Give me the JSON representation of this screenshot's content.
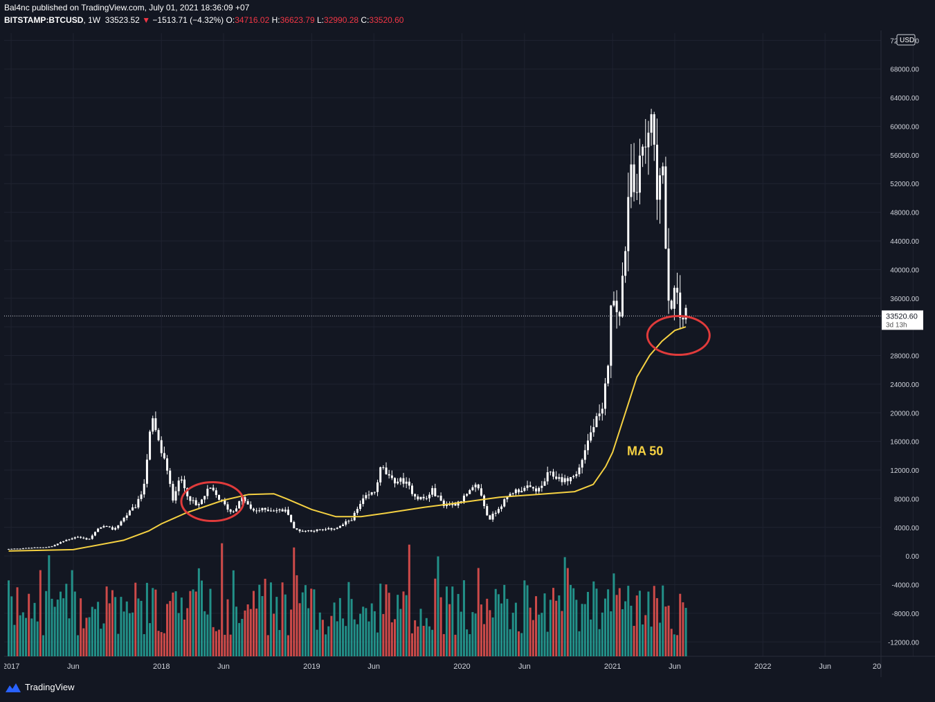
{
  "header": {
    "publisher": "Bal4nc published on TradingView.com, July 01, 2021 18:36:09 +07",
    "symbol": "BITSTAMP:BTCUSD",
    "interval": "1W",
    "last_price": "33523.52",
    "change_arrow": "▼",
    "change": "−1513.71 (−4.32%)",
    "open_label": "O:",
    "open": "34716.02",
    "high_label": "H:",
    "high": "36623.79",
    "low_label": "L:",
    "low": "32990.28",
    "close_label": "C:",
    "close": "33520.60"
  },
  "price_axis": {
    "currency": "USD",
    "ticks": [
      72000,
      68000,
      64000,
      60000,
      56000,
      52000,
      48000,
      44000,
      40000,
      36000,
      32000,
      28000,
      24000,
      20000,
      16000,
      12000,
      8000,
      4000,
      0,
      -4000,
      -8000,
      -12000
    ],
    "tick_labels": [
      "72000.00",
      "68000.00",
      "64000.00",
      "60000.00",
      "56000.00",
      "52000.00",
      "48000.00",
      "44000.00",
      "40000.00",
      "36000.00",
      "32000.00",
      "28000.00",
      "24000.00",
      "20000.00",
      "16000.00",
      "12000.00",
      "8000.00",
      "4000.00",
      "0.00",
      "-4000.00",
      "-8000.00",
      "-12000.00"
    ],
    "current_price_label": "33520.60",
    "countdown_label": "3d 13h"
  },
  "time_axis": {
    "labels": [
      "2017",
      "Jun",
      "2018",
      "Jun",
      "2019",
      "Jun",
      "2020",
      "Jun",
      "2021",
      "Jun",
      "2022",
      "Jun",
      "20"
    ]
  },
  "annotation": {
    "text": "MA 50"
  },
  "colors": {
    "background": "#131722",
    "candle": "#ffffff",
    "ma": "#f5d142",
    "circle": "#e03b3b",
    "vol_up": "#26a69a",
    "vol_down": "#ef5350"
  },
  "footer": {
    "brand": "TradingView"
  },
  "chart_data": {
    "type": "candlestick",
    "interval": "1W",
    "symbol": "BITSTAMP:BTCUSD",
    "ylim": [
      -14000,
      73000
    ],
    "x_range": [
      "2016-12-15",
      "2022-10-15"
    ],
    "current_price": 33520.6,
    "price_path": [
      [
        "2016-12-26",
        950
      ],
      [
        "2017-03-01",
        1150
      ],
      [
        "2017-04-15",
        1300
      ],
      [
        "2017-05-20",
        2200
      ],
      [
        "2017-06-15",
        2700
      ],
      [
        "2017-07-15",
        2300
      ],
      [
        "2017-08-15",
        4200
      ],
      [
        "2017-09-15",
        3700
      ],
      [
        "2017-10-15",
        5700
      ],
      [
        "2017-11-10",
        7200
      ],
      [
        "2017-11-25",
        9500
      ],
      [
        "2017-12-10",
        16500
      ],
      [
        "2017-12-17",
        19000
      ],
      [
        "2018-01-05",
        15000
      ],
      [
        "2018-01-15",
        13500
      ],
      [
        "2018-02-05",
        8000
      ],
      [
        "2018-02-20",
        11000
      ],
      [
        "2018-03-15",
        8300
      ],
      [
        "2018-04-05",
        6800
      ],
      [
        "2018-05-05",
        9500
      ],
      [
        "2018-06-05",
        7500
      ],
      [
        "2018-06-28",
        6000
      ],
      [
        "2018-07-25",
        8200
      ],
      [
        "2018-08-15",
        6300
      ],
      [
        "2018-09-15",
        6500
      ],
      [
        "2018-10-15",
        6400
      ],
      [
        "2018-11-10",
        6300
      ],
      [
        "2018-11-25",
        3800
      ],
      [
        "2018-12-15",
        3500
      ],
      [
        "2019-01-15",
        3600
      ],
      [
        "2019-02-15",
        3700
      ],
      [
        "2019-03-15",
        4000
      ],
      [
        "2019-04-15",
        5200
      ],
      [
        "2019-05-15",
        8000
      ],
      [
        "2019-06-10",
        9000
      ],
      [
        "2019-06-26",
        12500
      ],
      [
        "2019-07-20",
        10500
      ],
      [
        "2019-08-20",
        10500
      ],
      [
        "2019-09-20",
        8200
      ],
      [
        "2019-10-15",
        8000
      ],
      [
        "2019-10-26",
        9300
      ],
      [
        "2019-11-25",
        7200
      ],
      [
        "2019-12-20",
        7200
      ],
      [
        "2020-01-20",
        8500
      ],
      [
        "2020-02-15",
        10000
      ],
      [
        "2020-03-13",
        5000
      ],
      [
        "2020-04-10",
        7000
      ],
      [
        "2020-05-10",
        9000
      ],
      [
        "2020-06-15",
        9500
      ],
      [
        "2020-07-15",
        9200
      ],
      [
        "2020-08-05",
        11500
      ],
      [
        "2020-09-15",
        10500
      ],
      [
        "2020-10-15",
        11500
      ],
      [
        "2020-11-05",
        15500
      ],
      [
        "2020-11-25",
        18500
      ],
      [
        "2020-12-15",
        20000
      ],
      [
        "2020-12-29",
        28000
      ],
      [
        "2021-01-08",
        38000
      ],
      [
        "2021-01-25",
        33000
      ],
      [
        "2021-02-10",
        45000
      ],
      [
        "2021-02-20",
        57000
      ],
      [
        "2021-03-05",
        48000
      ],
      [
        "2021-03-15",
        58000
      ],
      [
        "2021-03-28",
        56000
      ],
      [
        "2021-04-12",
        62000
      ],
      [
        "2021-04-25",
        50000
      ],
      [
        "2021-05-08",
        58000
      ],
      [
        "2021-05-15",
        45000
      ],
      [
        "2021-05-22",
        34000
      ],
      [
        "2021-06-01",
        36000
      ],
      [
        "2021-06-10",
        37000
      ],
      [
        "2021-06-20",
        33500
      ],
      [
        "2021-06-28",
        33520
      ]
    ],
    "ma50": {
      "name": "MA 50",
      "points": [
        [
          "2016-12-26",
          700
        ],
        [
          "2017-06-01",
          900
        ],
        [
          "2017-10-01",
          2200
        ],
        [
          "2017-12-01",
          3500
        ],
        [
          "2018-01-01",
          4500
        ],
        [
          "2018-03-01",
          6000
        ],
        [
          "2018-06-01",
          7800
        ],
        [
          "2018-08-01",
          8600
        ],
        [
          "2018-10-01",
          8700
        ],
        [
          "2018-11-01",
          8000
        ],
        [
          "2019-01-01",
          6500
        ],
        [
          "2019-03-01",
          5500
        ],
        [
          "2019-05-01",
          5500
        ],
        [
          "2019-07-01",
          6000
        ],
        [
          "2019-10-01",
          6800
        ],
        [
          "2020-01-01",
          7500
        ],
        [
          "2020-04-01",
          8200
        ],
        [
          "2020-07-01",
          8600
        ],
        [
          "2020-10-01",
          9000
        ],
        [
          "2020-11-15",
          10000
        ],
        [
          "2020-12-15",
          12500
        ],
        [
          "2021-01-01",
          14500
        ],
        [
          "2021-02-01",
          20000
        ],
        [
          "2021-03-01",
          25000
        ],
        [
          "2021-04-01",
          28000
        ],
        [
          "2021-05-01",
          30000
        ],
        [
          "2021-06-01",
          31500
        ],
        [
          "2021-06-28",
          32000
        ]
      ]
    },
    "highlight_circles": [
      {
        "date": "2018-05-05",
        "price": 7600
      },
      {
        "date": "2021-06-10",
        "price": 30800
      }
    ],
    "volume_histogram_scale_note": ""
  }
}
